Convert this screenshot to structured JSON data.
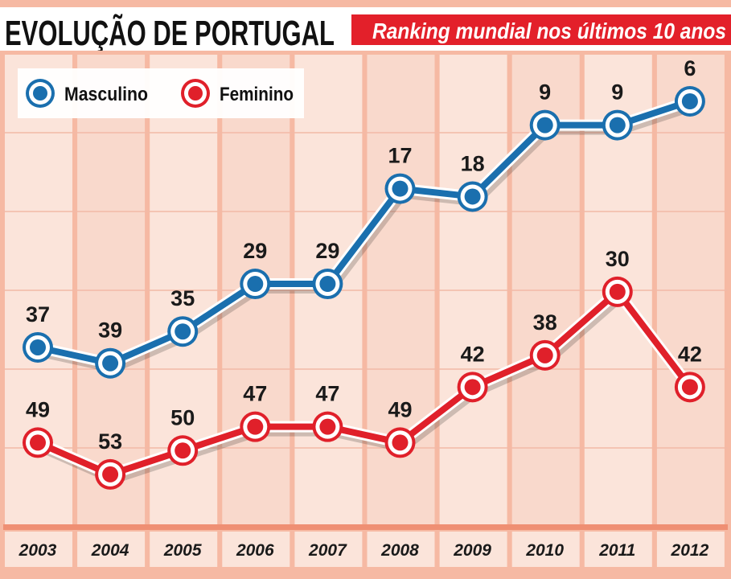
{
  "header": {
    "title": "EVOLUÇÃO DE PORTUGAL",
    "subtitle": "Ranking mundial nos últimos 10 anos"
  },
  "colors": {
    "masculino": "#1a6fae",
    "feminino": "#e0202a",
    "banner": "#e3202a",
    "background": "#f8d3c4",
    "grid": "#f2a388"
  },
  "chart_data": {
    "type": "line",
    "title": "EVOLUÇÃO DE PORTUGAL",
    "subtitle": "Ranking mundial nos últimos 10 anos",
    "categories": [
      "2003",
      "2004",
      "2005",
      "2006",
      "2007",
      "2008",
      "2009",
      "2010",
      "2011",
      "2012"
    ],
    "y_axis_inverted": true,
    "ylim": [
      60,
      0
    ],
    "grid": true,
    "legend_position": "top-left",
    "series": [
      {
        "name": "Masculino",
        "color": "#1a6fae",
        "values": [
          37,
          39,
          35,
          29,
          29,
          17,
          18,
          9,
          9,
          6
        ]
      },
      {
        "name": "Feminino",
        "color": "#e0202a",
        "values": [
          49,
          53,
          50,
          47,
          47,
          49,
          42,
          38,
          30,
          42
        ]
      }
    ]
  }
}
